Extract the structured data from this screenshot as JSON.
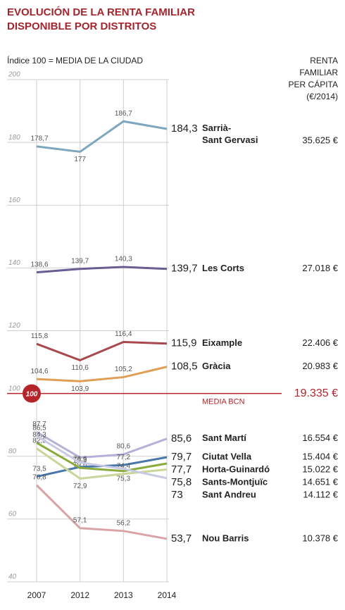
{
  "chart_data": {
    "type": "line",
    "title": [
      "EVOLUCIÓN DE LA RENTA FAMILIAR",
      "DISPONIBLE POR DISTRITOS"
    ],
    "subtitle": "Índice 100 = MEDIA DE LA CIUDAD",
    "income_header": [
      "RENTA",
      "FAMILIAR",
      "PER CÁPITA",
      "(€/2014)"
    ],
    "categories": [
      "2007",
      "2012",
      "2013",
      "2014"
    ],
    "ylim": [
      40,
      200
    ],
    "yticks": [
      40,
      60,
      80,
      100,
      120,
      140,
      160,
      180,
      200
    ],
    "grid": true,
    "reference": {
      "value": 100,
      "label": "MEDIA BCN",
      "income": "19.335 €",
      "color": "#b5232b"
    },
    "series": [
      {
        "name": "Sarrià-Sant Gervasi",
        "color": "#7ea7bf",
        "values": [
          178.7,
          177,
          186.7,
          184.3
        ],
        "value_labels": [
          "178,7",
          "177",
          "186,7",
          "184,3"
        ],
        "income": "35.625 €"
      },
      {
        "name": "Les Corts",
        "color": "#6a5d93",
        "values": [
          138.6,
          139.7,
          140.3,
          139.7
        ],
        "value_labels": [
          "138,6",
          "139,7",
          "140,3",
          "139,7"
        ],
        "income": "27.018 €"
      },
      {
        "name": "Eixample",
        "color": "#a9484d",
        "values": [
          115.8,
          110.6,
          116.4,
          115.9
        ],
        "value_labels": [
          "115,8",
          "110,6",
          "116,4",
          "115,9"
        ],
        "income": "22.406 €"
      },
      {
        "name": "Gràcia",
        "color": "#df9f55",
        "values": [
          104.6,
          103.9,
          105.2,
          108.5
        ],
        "value_labels": [
          "104,6",
          "103,9",
          "105,2",
          "108,5"
        ],
        "income": "20.983 €"
      },
      {
        "name": "Sant Martí",
        "color": "#b6b0d6",
        "values": [
          87.7,
          79.6,
          80.6,
          85.6
        ],
        "value_labels": [
          "87,7",
          "79,6",
          "80,6",
          "85,6"
        ],
        "income": "16.554 €"
      },
      {
        "name": "Ciutat Vella",
        "color": "#4878a9",
        "values": [
          73.5,
          76.6,
          77.2,
          79.7
        ],
        "value_labels": [
          "73,5",
          "76,6",
          "77,2",
          "79,7"
        ],
        "income": "15.404 €"
      },
      {
        "name": "Horta-Guinardó",
        "color": "#8aab3c",
        "values": [
          84.3,
          76.3,
          75.3,
          77.7
        ],
        "value_labels": [
          "84,3",
          "76,3",
          "75,3",
          "77,7"
        ],
        "income": "15.022 €"
      },
      {
        "name": "Sants-Montjuïc",
        "color": "#c8d69a",
        "values": [
          82.5,
          72.9,
          74.4,
          75.8
        ],
        "value_labels": [
          "82,5",
          "72,9",
          "74,4",
          "75,8"
        ],
        "income": "14.651 €"
      },
      {
        "name": "Sant Andreu",
        "color": "#c7cae2",
        "values": [
          86.5,
          78,
          76,
          73
        ],
        "value_labels": [
          "86,5",
          null,
          null,
          "73"
        ],
        "income": "14.112 €"
      },
      {
        "name": "Nou Barris",
        "color": "#d9a4a7",
        "values": [
          70.8,
          57.1,
          56.2,
          53.7
        ],
        "value_labels": [
          "70,8",
          "57,1",
          "56,2",
          "53,7"
        ],
        "income": "10.378 €"
      }
    ]
  }
}
